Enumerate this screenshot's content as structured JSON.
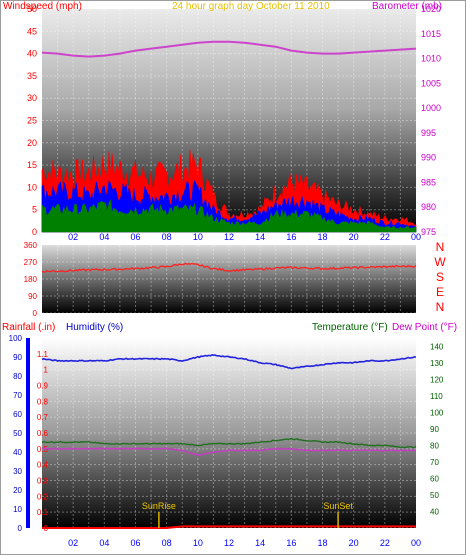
{
  "header": {
    "left_label": "Windspeed (mph)",
    "center_label": "24 hour graph day   October 11 2010",
    "right_label": "Barometer (mb)"
  },
  "lower_header": {
    "rain_label": "Rainfall (.in)",
    "humidity_label": "Humidity (%)",
    "temp_label": "Temperature (°F)",
    "dew_label": "Dew Point (°F)"
  },
  "compass": [
    "N",
    "W",
    "S",
    "E",
    "N"
  ],
  "x_tick_labels": [
    "02",
    "04",
    "06",
    "08",
    "10",
    "12",
    "14",
    "16",
    "18",
    "20",
    "22",
    "00"
  ],
  "annotations": {
    "sunrise": "SunRise",
    "sunset": "SunSet"
  },
  "colors": {
    "wind": "#ff0000",
    "wind_avg": "#0000ff",
    "wind_low": "#008000",
    "barometer": "#cc44cc",
    "direction": "#ff2020",
    "humidity": "#2222dd",
    "temperature": "#207020",
    "dew_point": "#c040c0",
    "rain": "#ff0000",
    "sun_marker": "#d8b000"
  },
  "chart_data": [
    {
      "type": "area",
      "title": "24 hour graph day   October 11 2010",
      "ylabel": "Windspeed (mph)",
      "y2label": "Barometer (mb)",
      "x_ticks": [
        "02",
        "04",
        "06",
        "08",
        "10",
        "12",
        "14",
        "16",
        "18",
        "20",
        "22",
        "00"
      ],
      "ylim": [
        0,
        50
      ],
      "y_ticks": [
        0,
        5,
        10,
        15,
        20,
        25,
        30,
        35,
        40,
        45,
        50
      ],
      "y2lim": [
        975,
        1020
      ],
      "y2_ticks": [
        975,
        980,
        985,
        990,
        995,
        1000,
        1005,
        1010,
        1015,
        1020
      ],
      "grid": true,
      "x_hours": [
        0,
        1,
        2,
        3,
        4,
        5,
        6,
        7,
        8,
        9,
        10,
        11,
        12,
        13,
        14,
        15,
        16,
        17,
        18,
        19,
        20,
        21,
        22,
        23,
        24
      ],
      "series": [
        {
          "name": "Windspeed (mph)",
          "axis": "left",
          "values": [
            14,
            13,
            13,
            13,
            15,
            14,
            13,
            12,
            13,
            14,
            15,
            8,
            4,
            4,
            5,
            9,
            11,
            10,
            8,
            6,
            5,
            4,
            3,
            3,
            2
          ]
        },
        {
          "axis": "left",
          "values": [
            9,
            9,
            9,
            8,
            10,
            9,
            8,
            8,
            8,
            9,
            9,
            5,
            3,
            3,
            4,
            6,
            7,
            7,
            5,
            4,
            3,
            3,
            2,
            2,
            1
          ]
        },
        {
          "axis": "left",
          "values": [
            5,
            5,
            5,
            5,
            6,
            5,
            5,
            5,
            5,
            5,
            5,
            3,
            2,
            2,
            2,
            4,
            4,
            4,
            3,
            2,
            2,
            2,
            1,
            1,
            1
          ]
        },
        {
          "name": "Barometer (mb)",
          "axis": "right",
          "values": [
            1011.2,
            1011,
            1010.6,
            1010.4,
            1010.6,
            1011,
            1011.6,
            1012,
            1012.4,
            1012.8,
            1013.2,
            1013.4,
            1013.4,
            1013.2,
            1012.8,
            1012.4,
            1011.6,
            1011.2,
            1011,
            1011,
            1011.2,
            1011.4,
            1011.6,
            1011.8,
            1012
          ]
        }
      ]
    },
    {
      "type": "line",
      "ylabel": "",
      "ylim": [
        0,
        360
      ],
      "y_ticks": [
        0,
        90,
        180,
        270,
        360
      ],
      "x_ticks": [
        "02",
        "04",
        "06",
        "08",
        "10",
        "12",
        "14",
        "16",
        "18",
        "20",
        "22",
        "00"
      ],
      "grid": true,
      "x_hours": [
        0,
        1,
        2,
        3,
        4,
        5,
        6,
        7,
        8,
        9,
        10,
        11,
        12,
        13,
        14,
        15,
        16,
        17,
        18,
        19,
        20,
        21,
        22,
        23,
        24
      ],
      "series": [
        {
          "values": [
            220,
            222,
            225,
            228,
            230,
            232,
            235,
            240,
            245,
            260,
            255,
            235,
            225,
            228,
            232,
            238,
            240,
            238,
            235,
            237,
            240,
            242,
            245,
            247,
            248
          ]
        }
      ]
    },
    {
      "type": "line",
      "xlabel": "",
      "x_ticks": [
        "02",
        "04",
        "06",
        "08",
        "10",
        "12",
        "14",
        "16",
        "18",
        "20",
        "22",
        "00"
      ],
      "ylim_rain": [
        0,
        1.2
      ],
      "y_ticks_rain": [
        0,
        0.1,
        0.2,
        0.3,
        0.4,
        0.5,
        0.6,
        0.7,
        0.8,
        0.9,
        1,
        1.1
      ],
      "ylim_humidity": [
        0,
        100
      ],
      "y_ticks_humidity": [
        0,
        10,
        20,
        30,
        40,
        50,
        60,
        70,
        80,
        90,
        100
      ],
      "ylim_temp": [
        30,
        145
      ],
      "y_ticks_temp": [
        40,
        50,
        60,
        70,
        80,
        90,
        100,
        110,
        120,
        130,
        140
      ],
      "grid": true,
      "x_hours": [
        0,
        1,
        2,
        3,
        4,
        5,
        6,
        7,
        8,
        9,
        10,
        11,
        12,
        13,
        14,
        15,
        16,
        17,
        18,
        19,
        20,
        21,
        22,
        23,
        24
      ],
      "series": [
        {
          "name": "Humidity (%)",
          "axis": "humidity",
          "values": [
            89,
            88,
            88,
            88,
            88,
            89,
            89,
            89,
            89,
            88,
            90,
            91,
            90,
            89,
            87,
            86,
            84,
            85,
            86,
            87,
            87,
            88,
            88,
            89,
            90
          ]
        },
        {
          "name": "Temperature (°F)",
          "axis": "temp",
          "values": [
            82,
            82,
            82,
            82,
            81,
            81,
            81,
            81,
            81,
            81,
            80,
            81,
            81,
            81,
            82,
            83,
            84,
            83,
            82,
            82,
            81,
            80,
            80,
            79,
            79
          ]
        },
        {
          "name": "Dew Point (°F)",
          "axis": "temp",
          "values": [
            78,
            78,
            78,
            78,
            78,
            78,
            78,
            78,
            78,
            77,
            74,
            76,
            77,
            77,
            77,
            78,
            78,
            77,
            77,
            77,
            77,
            77,
            77,
            77,
            77
          ]
        },
        {
          "name": "Rainfall (.in)",
          "axis": "rain",
          "values": [
            0,
            0,
            0,
            0,
            0,
            0,
            0,
            0,
            0,
            0.01,
            0.01,
            0.01,
            0.01,
            0.01,
            0.01,
            0.01,
            0.01,
            0.01,
            0.01,
            0.01,
            0.01,
            0.01,
            0.01,
            0.01,
            0.01
          ]
        }
      ],
      "sun_events": {
        "sunrise_hour": 7.5,
        "sunset_hour": 19
      }
    }
  ]
}
